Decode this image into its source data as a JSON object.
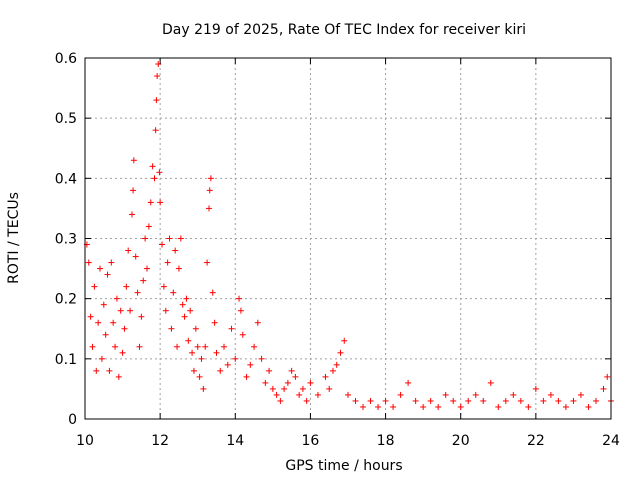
{
  "chart_data": {
    "type": "scatter",
    "title": "Day 219 of 2025, Rate Of TEC Index for receiver kiri",
    "xlabel": "GPS time / hours",
    "ylabel": "ROTI / TECUs",
    "xlim": [
      10,
      24
    ],
    "ylim": [
      0,
      0.6
    ],
    "x_ticks": [
      10,
      12,
      14,
      16,
      18,
      20,
      22,
      24
    ],
    "x_tick_labels": [
      "10",
      "12",
      "14",
      "16",
      "18",
      "20",
      "22",
      "24"
    ],
    "y_ticks": [
      0,
      0.1,
      0.2,
      0.3,
      0.4,
      0.5,
      0.6
    ],
    "y_tick_labels": [
      "0",
      "0.1",
      "0.2",
      "0.3",
      "0.4",
      "0.5",
      "0.6"
    ],
    "grid": true,
    "marker": "+",
    "series": [
      {
        "name": "ROTI",
        "color": "#ff0000",
        "points": [
          [
            10.05,
            0.29
          ],
          [
            10.1,
            0.26
          ],
          [
            10.15,
            0.17
          ],
          [
            10.2,
            0.12
          ],
          [
            10.25,
            0.22
          ],
          [
            10.3,
            0.08
          ],
          [
            10.35,
            0.16
          ],
          [
            10.4,
            0.25
          ],
          [
            10.45,
            0.1
          ],
          [
            10.5,
            0.19
          ],
          [
            10.55,
            0.14
          ],
          [
            10.6,
            0.24
          ],
          [
            10.65,
            0.08
          ],
          [
            10.7,
            0.26
          ],
          [
            10.75,
            0.16
          ],
          [
            10.8,
            0.12
          ],
          [
            10.85,
            0.2
          ],
          [
            10.9,
            0.07
          ],
          [
            10.95,
            0.18
          ],
          [
            11.0,
            0.11
          ],
          [
            11.05,
            0.15
          ],
          [
            11.1,
            0.22
          ],
          [
            11.15,
            0.28
          ],
          [
            11.2,
            0.18
          ],
          [
            11.25,
            0.34
          ],
          [
            11.28,
            0.38
          ],
          [
            11.3,
            0.43
          ],
          [
            11.35,
            0.27
          ],
          [
            11.4,
            0.21
          ],
          [
            11.45,
            0.12
          ],
          [
            11.5,
            0.17
          ],
          [
            11.55,
            0.23
          ],
          [
            11.6,
            0.3
          ],
          [
            11.65,
            0.25
          ],
          [
            11.7,
            0.32
          ],
          [
            11.75,
            0.36
          ],
          [
            11.8,
            0.42
          ],
          [
            11.85,
            0.4
          ],
          [
            11.88,
            0.48
          ],
          [
            11.9,
            0.53
          ],
          [
            11.92,
            0.57
          ],
          [
            11.95,
            0.59
          ],
          [
            11.98,
            0.41
          ],
          [
            12.0,
            0.36
          ],
          [
            12.05,
            0.29
          ],
          [
            12.1,
            0.22
          ],
          [
            12.15,
            0.18
          ],
          [
            12.2,
            0.26
          ],
          [
            12.25,
            0.3
          ],
          [
            12.3,
            0.15
          ],
          [
            12.35,
            0.21
          ],
          [
            12.4,
            0.28
          ],
          [
            12.45,
            0.12
          ],
          [
            12.5,
            0.25
          ],
          [
            12.55,
            0.3
          ],
          [
            12.6,
            0.19
          ],
          [
            12.65,
            0.17
          ],
          [
            12.7,
            0.2
          ],
          [
            12.75,
            0.13
          ],
          [
            12.8,
            0.18
          ],
          [
            12.85,
            0.11
          ],
          [
            12.9,
            0.08
          ],
          [
            12.95,
            0.15
          ],
          [
            13.0,
            0.12
          ],
          [
            13.05,
            0.07
          ],
          [
            13.1,
            0.1
          ],
          [
            13.15,
            0.05
          ],
          [
            13.2,
            0.12
          ],
          [
            13.25,
            0.26
          ],
          [
            13.3,
            0.35
          ],
          [
            13.32,
            0.38
          ],
          [
            13.35,
            0.4
          ],
          [
            13.4,
            0.21
          ],
          [
            13.45,
            0.16
          ],
          [
            13.5,
            0.11
          ],
          [
            13.6,
            0.08
          ],
          [
            13.7,
            0.12
          ],
          [
            13.8,
            0.09
          ],
          [
            13.9,
            0.15
          ],
          [
            14.0,
            0.1
          ],
          [
            14.1,
            0.2
          ],
          [
            14.15,
            0.18
          ],
          [
            14.2,
            0.14
          ],
          [
            14.3,
            0.07
          ],
          [
            14.4,
            0.09
          ],
          [
            14.5,
            0.12
          ],
          [
            14.6,
            0.16
          ],
          [
            14.7,
            0.1
          ],
          [
            14.8,
            0.06
          ],
          [
            14.9,
            0.08
          ],
          [
            15.0,
            0.05
          ],
          [
            15.1,
            0.04
          ],
          [
            15.2,
            0.03
          ],
          [
            15.3,
            0.05
          ],
          [
            15.4,
            0.06
          ],
          [
            15.5,
            0.08
          ],
          [
            15.6,
            0.07
          ],
          [
            15.7,
            0.04
          ],
          [
            15.8,
            0.05
          ],
          [
            15.9,
            0.03
          ],
          [
            16.0,
            0.06
          ],
          [
            16.2,
            0.04
          ],
          [
            16.4,
            0.07
          ],
          [
            16.5,
            0.05
          ],
          [
            16.6,
            0.08
          ],
          [
            16.7,
            0.09
          ],
          [
            16.8,
            0.11
          ],
          [
            16.9,
            0.13
          ],
          [
            17.0,
            0.04
          ],
          [
            17.2,
            0.03
          ],
          [
            17.4,
            0.02
          ],
          [
            17.6,
            0.03
          ],
          [
            17.8,
            0.02
          ],
          [
            18.0,
            0.03
          ],
          [
            18.2,
            0.02
          ],
          [
            18.4,
            0.04
          ],
          [
            18.6,
            0.06
          ],
          [
            18.8,
            0.03
          ],
          [
            19.0,
            0.02
          ],
          [
            19.2,
            0.03
          ],
          [
            19.4,
            0.02
          ],
          [
            19.6,
            0.04
          ],
          [
            19.8,
            0.03
          ],
          [
            20.0,
            0.02
          ],
          [
            20.2,
            0.03
          ],
          [
            20.4,
            0.04
          ],
          [
            20.6,
            0.03
          ],
          [
            20.8,
            0.06
          ],
          [
            21.0,
            0.02
          ],
          [
            21.2,
            0.03
          ],
          [
            21.4,
            0.04
          ],
          [
            21.6,
            0.03
          ],
          [
            21.8,
            0.02
          ],
          [
            22.0,
            0.05
          ],
          [
            22.2,
            0.03
          ],
          [
            22.4,
            0.04
          ],
          [
            22.6,
            0.03
          ],
          [
            22.8,
            0.02
          ],
          [
            23.0,
            0.03
          ],
          [
            23.2,
            0.04
          ],
          [
            23.4,
            0.02
          ],
          [
            23.6,
            0.03
          ],
          [
            23.8,
            0.05
          ],
          [
            23.9,
            0.07
          ],
          [
            24.0,
            0.03
          ]
        ]
      }
    ]
  }
}
